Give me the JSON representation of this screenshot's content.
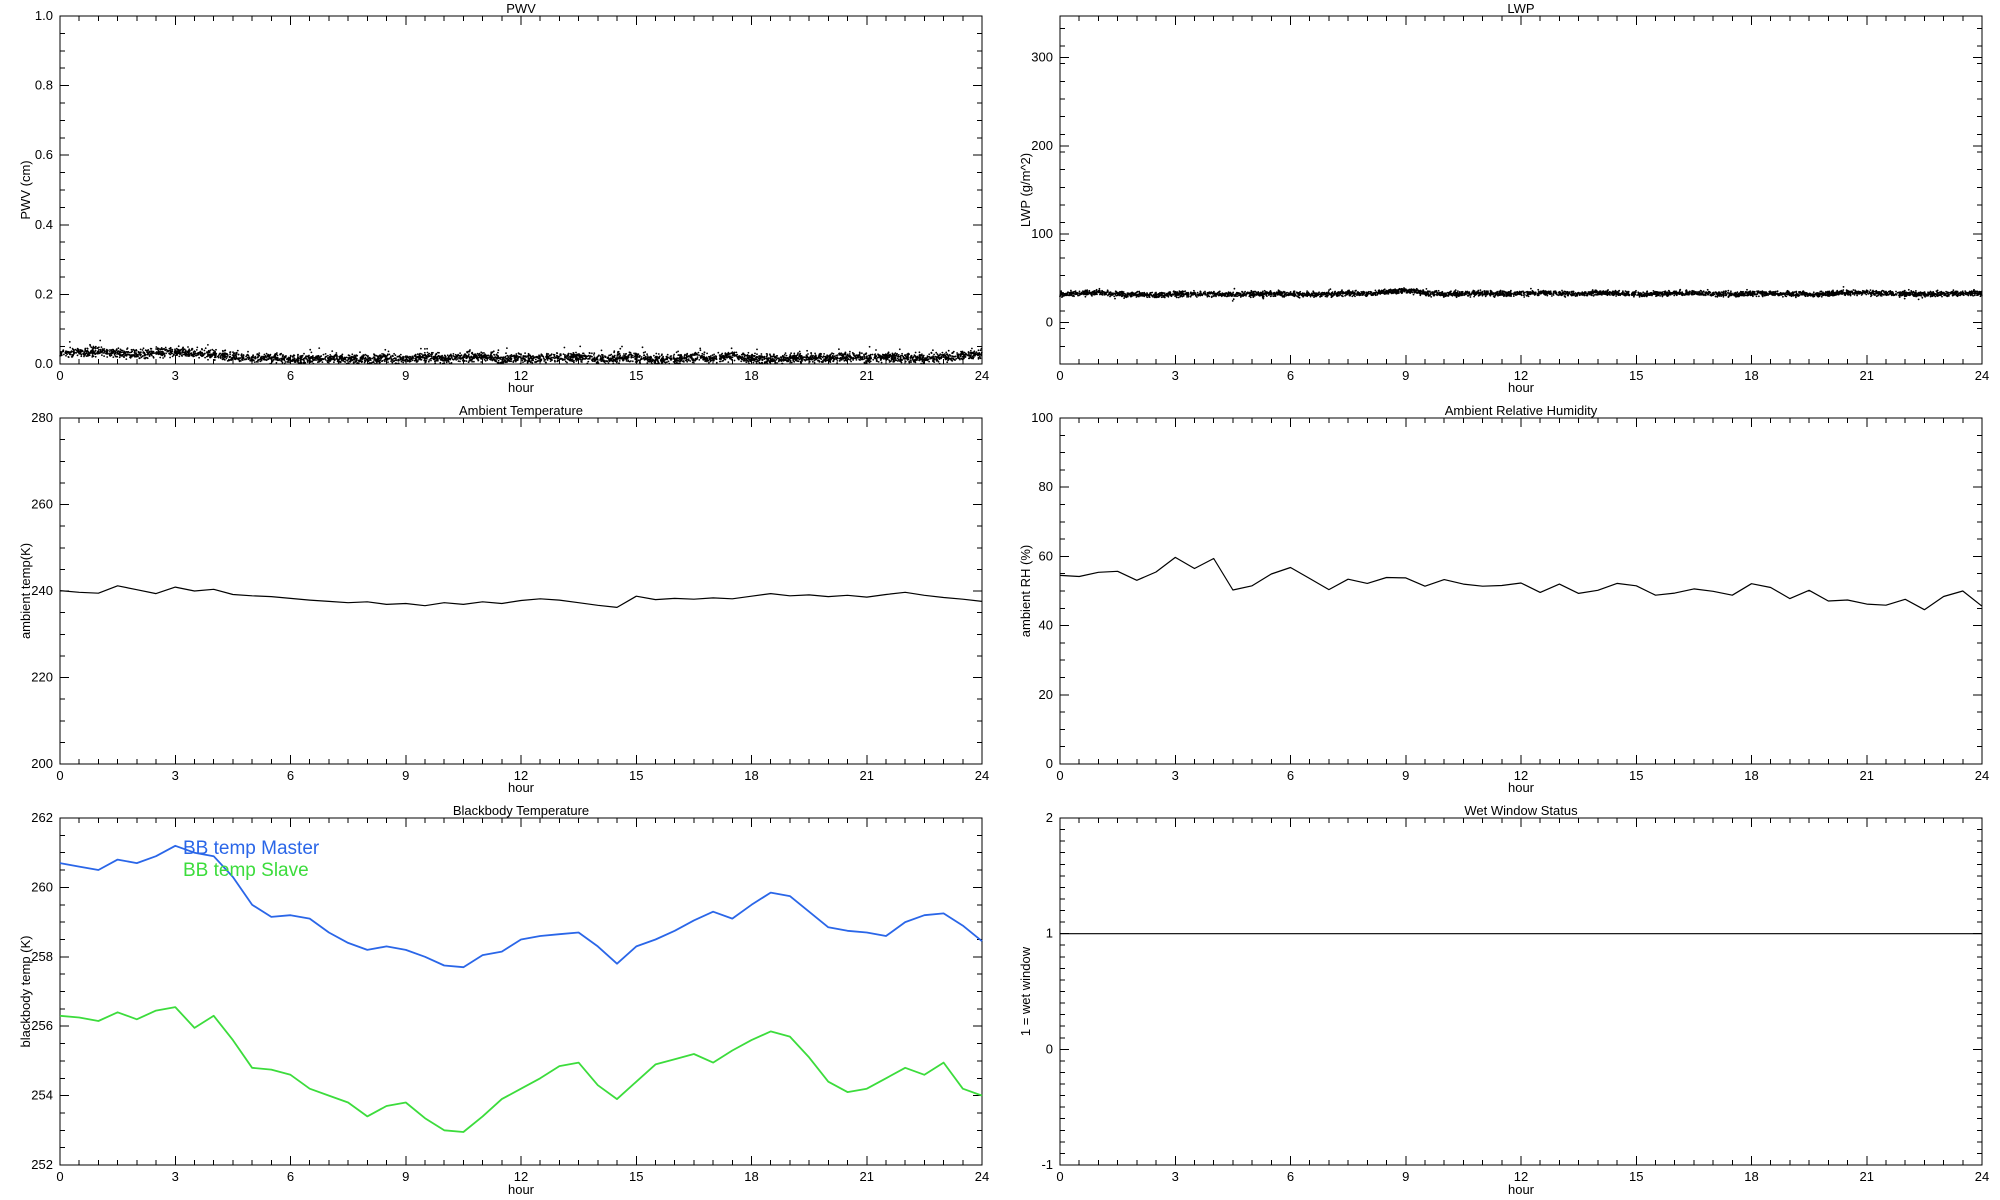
{
  "page": {
    "background": "#ffffff",
    "axis_color": "#000000",
    "text_color": "#000000"
  },
  "shared_x": {
    "label": "hour",
    "min": 0,
    "max": 24,
    "major_ticks": [
      0,
      3,
      6,
      9,
      12,
      15,
      18,
      21,
      24
    ],
    "major_tick_labels": [
      "0",
      "3",
      "6",
      "9",
      "12",
      "15",
      "18",
      "21",
      "24"
    ],
    "minor_step": 0.5
  },
  "chart_data": [
    {
      "id": "pwv",
      "type": "scatter",
      "title": "PWV",
      "xlabel": "hour",
      "ylabel": "PWV (cm)",
      "xlim": [
        0,
        24
      ],
      "ylim": [
        0,
        1
      ],
      "yticks": [
        0,
        0.2,
        0.4,
        0.6,
        0.8,
        1
      ],
      "ytick_labels": [
        "0.0",
        "0.2",
        "0.4",
        "0.6",
        "0.8",
        "1.0"
      ],
      "yminor_step": 0.05,
      "color": "#000000",
      "noise_halfwidth": 0.008,
      "outlier_fraction": 0.05,
      "outlier_scale": 3.0,
      "outlier_positive_only": true,
      "clamp_min": 0.0008,
      "x_start": 0,
      "x_step": 0.5,
      "mean": [
        0.03,
        0.033,
        0.036,
        0.03,
        0.028,
        0.033,
        0.035,
        0.03,
        0.027,
        0.02,
        0.016,
        0.019,
        0.013,
        0.014,
        0.017,
        0.014,
        0.012,
        0.017,
        0.014,
        0.021,
        0.015,
        0.019,
        0.021,
        0.015,
        0.018,
        0.015,
        0.018,
        0.021,
        0.013,
        0.017,
        0.019,
        0.014,
        0.012,
        0.02,
        0.015,
        0.023,
        0.014,
        0.012,
        0.016,
        0.018,
        0.017,
        0.021,
        0.016,
        0.02,
        0.017,
        0.014,
        0.019,
        0.024,
        0.028
      ]
    },
    {
      "id": "lwp",
      "type": "scatter",
      "title": "LWP",
      "xlabel": "hour",
      "ylabel": "LWP (g/m^2)",
      "xlim": [
        0,
        24
      ],
      "ylim": [
        -47,
        347
      ],
      "yticks": [
        0,
        100,
        200,
        300
      ],
      "ytick_labels": [
        "0",
        "100",
        "200",
        "300"
      ],
      "yminor_step": 20,
      "color": "#000000",
      "noise_halfwidth": 1.8,
      "outlier_fraction": 0.03,
      "outlier_scale": 2.2,
      "outlier_positive_only": false,
      "x_start": 0,
      "x_step": 0.5,
      "mean": [
        32.0,
        32.5,
        34.0,
        32.0,
        31.5,
        31.0,
        32.0,
        32.5,
        32.0,
        31.5,
        32.0,
        32.5,
        32.0,
        31.5,
        32.0,
        33.0,
        32.5,
        34.5,
        36.5,
        33.5,
        32.0,
        32.5,
        33.0,
        32.5,
        32.5,
        33.5,
        33.0,
        32.5,
        34.0,
        33.0,
        32.0,
        32.5,
        33.0,
        33.5,
        32.5,
        32.0,
        32.5,
        33.0,
        32.5,
        32.0,
        32.5,
        33.5,
        34.0,
        33.0,
        32.5,
        32.0,
        32.5,
        33.0,
        33.0
      ]
    },
    {
      "id": "ambient_temperature",
      "type": "line",
      "title": "Ambient Temperature",
      "xlabel": "hour",
      "ylabel": "ambient temp(K)",
      "xlim": [
        0,
        24
      ],
      "ylim": [
        200,
        280
      ],
      "yticks": [
        200,
        220,
        240,
        260,
        280
      ],
      "ytick_labels": [
        "200",
        "220",
        "240",
        "260",
        "280"
      ],
      "yminor_step": 5,
      "color": "#000000",
      "x_start": 0,
      "x_step": 0.5,
      "y": [
        240.1,
        239.7,
        239.5,
        241.2,
        240.3,
        239.4,
        240.9,
        240.0,
        240.4,
        239.2,
        238.9,
        238.7,
        238.3,
        237.9,
        237.6,
        237.3,
        237.5,
        236.9,
        237.1,
        236.6,
        237.3,
        236.9,
        237.5,
        237.1,
        237.8,
        238.2,
        237.9,
        237.3,
        236.7,
        236.2,
        238.8,
        238.0,
        238.3,
        238.1,
        238.4,
        238.2,
        238.8,
        239.4,
        238.9,
        239.1,
        238.7,
        239.0,
        238.6,
        239.2,
        239.7,
        239.0,
        238.5,
        238.1,
        237.6
      ]
    },
    {
      "id": "ambient_relative_humidity",
      "type": "line",
      "title": "Ambient Relative Humidity",
      "xlabel": "hour",
      "ylabel": "ambient RH (%)",
      "xlim": [
        0,
        24
      ],
      "ylim": [
        0,
        100
      ],
      "yticks": [
        0,
        20,
        40,
        60,
        80,
        100
      ],
      "ytick_labels": [
        "0",
        "20",
        "40",
        "60",
        "80",
        "100"
      ],
      "yminor_step": 5,
      "color": "#000000",
      "x_start": 0,
      "x_step": 0.5,
      "y": [
        54.5,
        54.2,
        55.4,
        55.7,
        53.1,
        55.5,
        59.7,
        56.5,
        59.4,
        50.3,
        51.5,
        54.9,
        56.8,
        53.6,
        50.4,
        53.4,
        52.2,
        53.9,
        53.8,
        51.4,
        53.3,
        52.0,
        51.4,
        51.6,
        52.3,
        49.6,
        52.0,
        49.3,
        50.2,
        52.2,
        51.5,
        48.8,
        49.4,
        50.6,
        49.9,
        48.8,
        52.1,
        51.0,
        47.8,
        50.2,
        47.1,
        47.4,
        46.2,
        45.9,
        47.6,
        44.6,
        48.4,
        50.0,
        45.6
      ]
    },
    {
      "id": "blackbody_temperature",
      "type": "multiline",
      "title": "Blackbody Temperature",
      "xlabel": "hour",
      "ylabel": "blackbody temp (K)",
      "xlim": [
        0,
        24
      ],
      "ylim": [
        252,
        262
      ],
      "yticks": [
        252,
        254,
        256,
        258,
        260,
        262
      ],
      "ytick_labels": [
        "252",
        "254",
        "256",
        "258",
        "260",
        "262"
      ],
      "yminor_step": 0.5,
      "series": [
        {
          "name": "BB temp Master",
          "color": "#2a66e8",
          "x_start": 0,
          "x_step": 0.5,
          "y": [
            260.7,
            260.6,
            260.5,
            260.8,
            260.7,
            260.9,
            261.2,
            261.0,
            260.9,
            260.3,
            259.5,
            259.15,
            259.2,
            259.1,
            258.7,
            258.4,
            258.2,
            258.3,
            258.2,
            258.0,
            257.75,
            257.7,
            258.05,
            258.15,
            258.5,
            258.6,
            258.65,
            258.7,
            258.3,
            257.8,
            258.3,
            258.5,
            258.75,
            259.05,
            259.3,
            259.1,
            259.5,
            259.85,
            259.75,
            259.3,
            258.85,
            258.75,
            258.7,
            258.6,
            259.0,
            259.2,
            259.25,
            258.9,
            258.45
          ]
        },
        {
          "name": "BB temp Slave",
          "color": "#3cdc3c",
          "x_start": 0,
          "x_step": 0.5,
          "y": [
            256.3,
            256.25,
            256.15,
            256.4,
            256.2,
            256.45,
            256.55,
            255.95,
            256.3,
            255.6,
            254.8,
            254.75,
            254.6,
            254.2,
            254.0,
            253.8,
            253.4,
            253.7,
            253.8,
            253.35,
            253.0,
            252.95,
            253.4,
            253.9,
            254.2,
            254.5,
            254.85,
            254.95,
            254.3,
            253.9,
            254.4,
            254.9,
            255.05,
            255.2,
            254.95,
            255.3,
            255.6,
            255.85,
            255.7,
            255.1,
            254.4,
            254.1,
            254.2,
            254.5,
            254.8,
            254.6,
            254.95,
            254.2,
            254.0
          ]
        }
      ]
    },
    {
      "id": "wet_window_status",
      "type": "line",
      "title": "Wet Window Status",
      "xlabel": "hour",
      "ylabel": "1 = wet window",
      "xlim": [
        0,
        24
      ],
      "ylim": [
        -1,
        2
      ],
      "yticks": [
        -1,
        0,
        1,
        2
      ],
      "ytick_labels": [
        "-1",
        "0",
        "1",
        "2"
      ],
      "yminor_step": 0.1,
      "color": "#000000",
      "x_start": 0,
      "x_step": 24,
      "y": [
        1,
        1
      ]
    }
  ]
}
